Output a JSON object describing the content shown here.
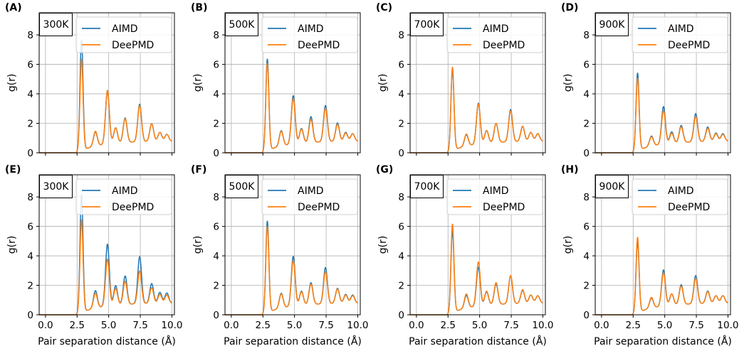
{
  "figure": {
    "xlabel": "Pair separation distance (Å)",
    "ylabel": "g(r)",
    "series_colors": {
      "AIMD": "#1f77b4",
      "DeePMD": "#ff7f0e"
    },
    "grid_color": "#b0b0b0"
  },
  "chart_data": [
    {
      "type": "line",
      "panel_label": "(A)",
      "temperature": "300K",
      "xlim": [
        -0.5,
        10.2
      ],
      "ylim": [
        0,
        9.5
      ],
      "xticks": [
        "0.0",
        "2.5",
        "5.0",
        "7.5",
        "10.0"
      ],
      "yticks": [
        "0",
        "2",
        "4",
        "6",
        "8"
      ],
      "legend": [
        "AIMD",
        "DeePMD"
      ],
      "legend_position": "top-right",
      "peaks": {
        "AIMD": [
          [
            2.85,
            7.6
          ],
          [
            3.95,
            1.3
          ],
          [
            4.9,
            4.2
          ],
          [
            5.55,
            1.5
          ],
          [
            6.3,
            2.2
          ],
          [
            7.45,
            3.2
          ],
          [
            8.4,
            1.75
          ],
          [
            9.05,
            1.1
          ],
          [
            9.6,
            0.95
          ]
        ],
        "DeePMD": [
          [
            2.85,
            6.3
          ],
          [
            3.95,
            1.35
          ],
          [
            4.9,
            4.3
          ],
          [
            5.55,
            1.5
          ],
          [
            6.3,
            2.15
          ],
          [
            7.45,
            3.1
          ],
          [
            8.4,
            1.75
          ],
          [
            9.05,
            1.1
          ],
          [
            9.6,
            0.95
          ]
        ]
      }
    },
    {
      "type": "line",
      "panel_label": "(B)",
      "temperature": "500K",
      "xlim": [
        -0.5,
        10.2
      ],
      "ylim": [
        0,
        9.5
      ],
      "xticks": [
        "0.0",
        "2.5",
        "5.0",
        "7.5",
        "10.0"
      ],
      "yticks": [
        "0",
        "2",
        "4",
        "6",
        "8"
      ],
      "legend": [
        "AIMD",
        "DeePMD"
      ],
      "legend_position": "top-right",
      "peaks": {
        "AIMD": [
          [
            2.85,
            6.3
          ],
          [
            3.95,
            1.4
          ],
          [
            4.9,
            3.9
          ],
          [
            5.55,
            1.45
          ],
          [
            6.3,
            2.3
          ],
          [
            7.45,
            3.1
          ],
          [
            8.4,
            1.8
          ],
          [
            9.05,
            1.1
          ],
          [
            9.6,
            1.0
          ]
        ],
        "DeePMD": [
          [
            2.85,
            6.0
          ],
          [
            3.95,
            1.35
          ],
          [
            4.9,
            3.7
          ],
          [
            5.55,
            1.4
          ],
          [
            6.3,
            2.1
          ],
          [
            7.45,
            2.9
          ],
          [
            8.4,
            1.7
          ],
          [
            9.05,
            1.05
          ],
          [
            9.6,
            1.0
          ]
        ]
      }
    },
    {
      "type": "line",
      "panel_label": "(C)",
      "temperature": "700K",
      "xlim": [
        -0.5,
        10.2
      ],
      "ylim": [
        0,
        9.5
      ],
      "xticks": [
        "0.0",
        "2.5",
        "5.0",
        "7.5",
        "10.0"
      ],
      "yticks": [
        "0",
        "2",
        "4",
        "6",
        "8"
      ],
      "legend": [
        "AIMD",
        "DeePMD"
      ],
      "legend_position": "top-right",
      "peaks": {
        "AIMD": [
          [
            2.85,
            5.6
          ],
          [
            3.95,
            1.1
          ],
          [
            4.9,
            3.35
          ],
          [
            5.55,
            1.3
          ],
          [
            6.3,
            1.8
          ],
          [
            7.45,
            2.8
          ],
          [
            8.4,
            1.55
          ],
          [
            9.05,
            1.1
          ],
          [
            9.6,
            1.0
          ]
        ],
        "DeePMD": [
          [
            2.85,
            5.75
          ],
          [
            3.95,
            1.15
          ],
          [
            4.9,
            3.3
          ],
          [
            5.55,
            1.3
          ],
          [
            6.3,
            1.8
          ],
          [
            7.45,
            2.7
          ],
          [
            8.4,
            1.55
          ],
          [
            9.05,
            1.1
          ],
          [
            9.6,
            1.0
          ]
        ]
      }
    },
    {
      "type": "line",
      "panel_label": "(D)",
      "temperature": "900K",
      "xlim": [
        -0.5,
        10.2
      ],
      "ylim": [
        0,
        9.5
      ],
      "xticks": [
        "0.0",
        "2.5",
        "5.0",
        "7.5",
        "10.0"
      ],
      "yticks": [
        "0",
        "2",
        "4",
        "6",
        "8"
      ],
      "legend": [
        "AIMD",
        "DeePMD"
      ],
      "legend_position": "top-right",
      "peaks": {
        "AIMD": [
          [
            2.85,
            5.35
          ],
          [
            3.95,
            1.0
          ],
          [
            4.9,
            3.1
          ],
          [
            5.55,
            1.2
          ],
          [
            6.3,
            1.65
          ],
          [
            7.45,
            2.5
          ],
          [
            8.4,
            1.5
          ],
          [
            9.05,
            1.05
          ],
          [
            9.6,
            1.0
          ]
        ],
        "DeePMD": [
          [
            2.85,
            5.0
          ],
          [
            3.95,
            0.95
          ],
          [
            4.9,
            2.8
          ],
          [
            5.55,
            1.1
          ],
          [
            6.3,
            1.55
          ],
          [
            7.45,
            2.3
          ],
          [
            8.4,
            1.4
          ],
          [
            9.05,
            1.0
          ],
          [
            9.6,
            0.95
          ]
        ]
      }
    },
    {
      "type": "line",
      "panel_label": "(E)",
      "temperature": "300K",
      "xlim": [
        -0.5,
        10.2
      ],
      "ylim": [
        0,
        9.5
      ],
      "xticks": [
        "0.0",
        "2.5",
        "5.0",
        "7.5",
        "10.0"
      ],
      "yticks": [
        "0",
        "2",
        "4",
        "6",
        "8"
      ],
      "legend": [
        "AIMD",
        "DeePMD"
      ],
      "legend_position": "top-right",
      "peaks": {
        "AIMD": [
          [
            2.85,
            8.1
          ],
          [
            3.95,
            1.55
          ],
          [
            4.9,
            4.9
          ],
          [
            5.55,
            1.8
          ],
          [
            6.3,
            2.5
          ],
          [
            7.45,
            3.9
          ],
          [
            8.4,
            1.9
          ],
          [
            9.05,
            1.25
          ],
          [
            9.6,
            1.2
          ]
        ],
        "DeePMD": [
          [
            2.85,
            6.4
          ],
          [
            3.95,
            1.35
          ],
          [
            4.9,
            3.8
          ],
          [
            5.55,
            1.6
          ],
          [
            6.3,
            2.1
          ],
          [
            7.45,
            2.85
          ],
          [
            8.4,
            1.6
          ],
          [
            9.05,
            1.1
          ],
          [
            9.6,
            1.05
          ]
        ]
      }
    },
    {
      "type": "line",
      "panel_label": "(F)",
      "temperature": "500K",
      "xlim": [
        -0.5,
        10.2
      ],
      "ylim": [
        0,
        9.5
      ],
      "xticks": [
        "0.0",
        "2.5",
        "5.0",
        "7.5",
        "10.0"
      ],
      "yticks": [
        "0",
        "2",
        "4",
        "6",
        "8"
      ],
      "legend": [
        "AIMD",
        "DeePMD"
      ],
      "legend_position": "top-right",
      "peaks": {
        "AIMD": [
          [
            2.85,
            6.3
          ],
          [
            3.95,
            1.35
          ],
          [
            4.9,
            4.0
          ],
          [
            5.55,
            1.4
          ],
          [
            6.3,
            2.0
          ],
          [
            7.45,
            3.1
          ],
          [
            8.4,
            1.55
          ],
          [
            9.05,
            1.1
          ],
          [
            9.6,
            1.05
          ]
        ],
        "DeePMD": [
          [
            2.85,
            5.95
          ],
          [
            3.95,
            1.3
          ],
          [
            4.9,
            3.7
          ],
          [
            5.55,
            1.35
          ],
          [
            6.3,
            1.9
          ],
          [
            7.45,
            2.8
          ],
          [
            8.4,
            1.5
          ],
          [
            9.05,
            1.05
          ],
          [
            9.6,
            1.0
          ]
        ]
      }
    },
    {
      "type": "line",
      "panel_label": "(G)",
      "temperature": "700K",
      "xlim": [
        -0.5,
        10.2
      ],
      "ylim": [
        0,
        9.5
      ],
      "xticks": [
        "0.0",
        "2.5",
        "5.0",
        "7.5",
        "10.0"
      ],
      "yticks": [
        "0",
        "2",
        "4",
        "6",
        "8"
      ],
      "legend": [
        "AIMD",
        "DeePMD"
      ],
      "legend_position": "top-right",
      "peaks": {
        "AIMD": [
          [
            2.85,
            5.65
          ],
          [
            3.95,
            1.2
          ],
          [
            4.9,
            3.2
          ],
          [
            5.55,
            1.35
          ],
          [
            6.3,
            1.9
          ],
          [
            7.45,
            2.5
          ],
          [
            8.4,
            1.4
          ],
          [
            9.05,
            1.05
          ],
          [
            9.6,
            1.0
          ]
        ],
        "DeePMD": [
          [
            2.85,
            6.1
          ],
          [
            3.95,
            1.3
          ],
          [
            4.9,
            3.6
          ],
          [
            5.55,
            1.4
          ],
          [
            6.3,
            2.0
          ],
          [
            7.45,
            2.5
          ],
          [
            8.4,
            1.45
          ],
          [
            9.05,
            1.05
          ],
          [
            9.6,
            1.0
          ]
        ]
      }
    },
    {
      "type": "line",
      "panel_label": "(H)",
      "temperature": "900K",
      "xlim": [
        -0.5,
        10.2
      ],
      "ylim": [
        0,
        9.5
      ],
      "xticks": [
        "0.0",
        "2.5",
        "5.0",
        "7.5",
        "10.0"
      ],
      "yticks": [
        "0",
        "2",
        "4",
        "6",
        "8"
      ],
      "legend": [
        "AIMD",
        "DeePMD"
      ],
      "legend_position": "top-right",
      "peaks": {
        "AIMD": [
          [
            2.85,
            4.9
          ],
          [
            3.95,
            1.0
          ],
          [
            4.9,
            3.0
          ],
          [
            5.55,
            1.2
          ],
          [
            6.3,
            1.85
          ],
          [
            7.45,
            2.5
          ],
          [
            8.4,
            1.35
          ],
          [
            9.05,
            1.0
          ],
          [
            9.6,
            1.0
          ]
        ],
        "DeePMD": [
          [
            2.85,
            5.2
          ],
          [
            3.95,
            1.05
          ],
          [
            4.9,
            2.8
          ],
          [
            5.55,
            1.2
          ],
          [
            6.3,
            1.75
          ],
          [
            7.45,
            2.3
          ],
          [
            8.4,
            1.3
          ],
          [
            9.05,
            1.0
          ],
          [
            9.6,
            1.0
          ]
        ]
      }
    }
  ]
}
